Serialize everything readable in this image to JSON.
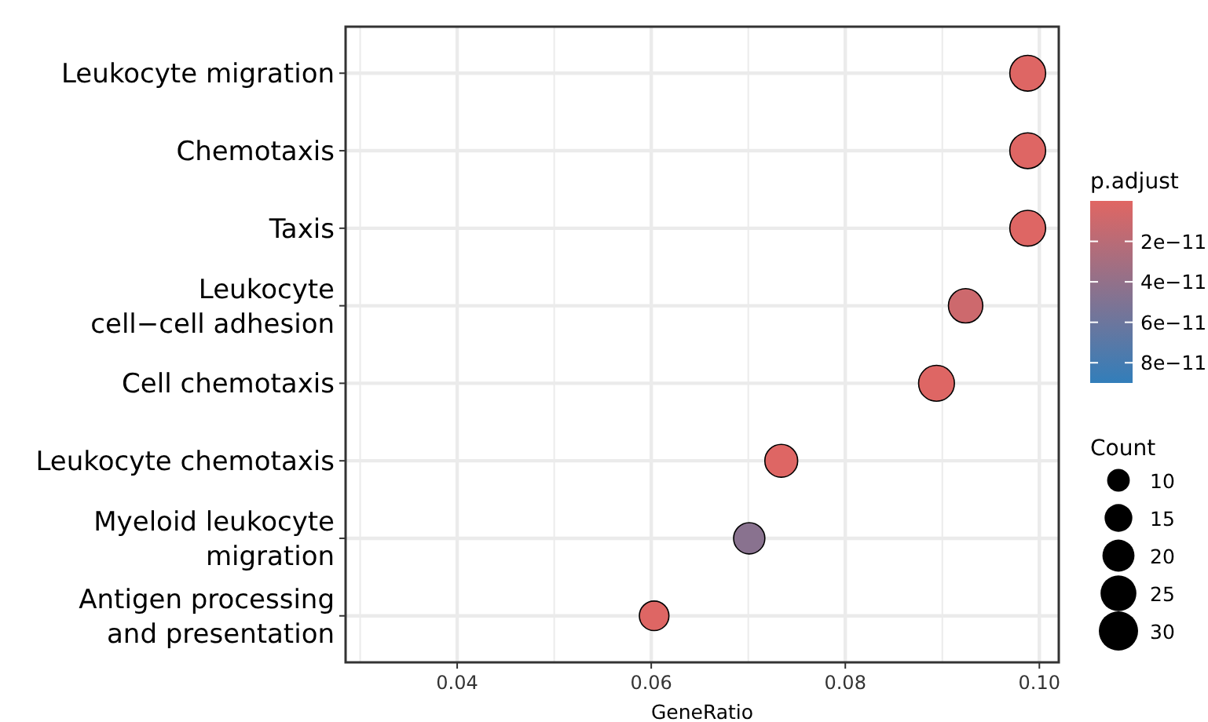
{
  "chart_data": {
    "type": "bubble",
    "xlabel": "GeneRatio",
    "categories": [
      "Leukocyte migration",
      "Chemotaxis",
      "Taxis",
      "Leukocyte cell−cell adhesion",
      "Cell chemotaxis",
      "Leukocyte chemotaxis",
      "Myeloid leukocyte migration",
      "Antigen processing and presentation"
    ],
    "values": [
      0.0988,
      0.0988,
      0.0988,
      0.0924,
      0.0894,
      0.0734,
      0.0701,
      0.0603
    ],
    "sizes": [
      25,
      25,
      25,
      23,
      25,
      21,
      19,
      17
    ],
    "cvalues": [
      1e-12,
      1e-12,
      1e-12,
      1e-11,
      1e-12,
      1e-12,
      4.5e-11,
      1e-12
    ],
    "orientation": "horizontal",
    "xlim": [
      0.0285,
      0.102
    ],
    "xticks": [
      0.04,
      0.06,
      0.08,
      {
        "value": 0.1,
        "label": "0.10"
      }
    ],
    "clabel": "p.adjust",
    "clim": [
      0,
      9e-11
    ],
    "cticks": [
      {
        "value": 2e-11,
        "label": "2e−11"
      },
      {
        "value": 4e-11,
        "label": "4e−11"
      },
      {
        "value": 6e-11,
        "label": "6e−11"
      },
      {
        "value": 8e-11,
        "label": "8e−11"
      }
    ],
    "size_legend": [
      10,
      15,
      20,
      25,
      30
    ],
    "legend_title": "Count",
    "grid": true
  }
}
